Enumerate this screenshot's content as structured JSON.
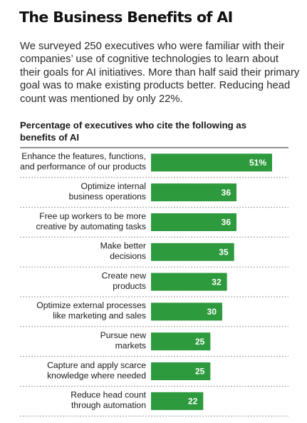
{
  "title": "The Business Benefits of AI",
  "intro": "We surveyed 250 executives who were familiar with their companies’ use of cognitive technologies to learn about their goals for AI initiatives. More than half said their primary goal was to make existing products better. Reducing head count was mentioned by only 22%.",
  "chart_data": {
    "type": "bar",
    "orientation": "horizontal",
    "title": "Percentage of executives who cite the following as benefits of AI",
    "categories": [
      [
        "Enhance the features, functions,",
        "and performance of our products"
      ],
      [
        "Optimize internal",
        "business operations"
      ],
      [
        "Free up workers to be more",
        "creative by automating tasks"
      ],
      [
        "Make better",
        "decisions"
      ],
      [
        "Create new",
        "products"
      ],
      [
        "Optimize external processes",
        "like marketing and sales"
      ],
      [
        "Pursue new",
        "markets"
      ],
      [
        "Capture and apply scarce",
        "knowledge where needed"
      ],
      [
        "Reduce head count",
        "through automation"
      ]
    ],
    "values": [
      51,
      36,
      36,
      35,
      32,
      30,
      25,
      25,
      22
    ],
    "value_labels": [
      "51%",
      "36",
      "36",
      "35",
      "32",
      "30",
      "25",
      "25",
      "22"
    ],
    "xlim": [
      0,
      51
    ],
    "grid": false,
    "colors": {
      "bar": "#2e9a3e",
      "value_text": "#ffffff"
    }
  }
}
